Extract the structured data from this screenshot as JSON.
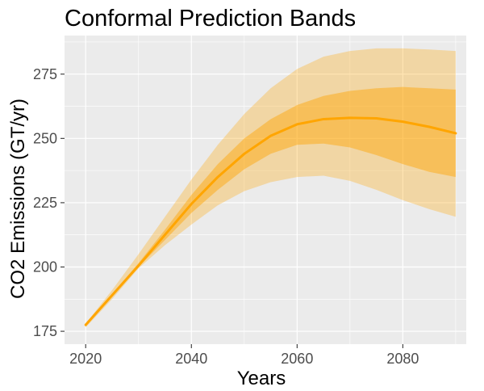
{
  "chart_data": {
    "type": "area",
    "title": "Conformal Prediction Bands",
    "xlabel": "Years",
    "ylabel": "CO2 Emissions (GT/yr)",
    "xlim": [
      2016,
      2092
    ],
    "ylim": [
      170,
      290
    ],
    "grid": true,
    "legend": "none",
    "x_ticks": [
      2020,
      2040,
      2060,
      2080
    ],
    "y_ticks": [
      175,
      200,
      225,
      250,
      275
    ],
    "x_tick_labels": [
      "2020",
      "2040",
      "2060",
      "2080"
    ],
    "y_tick_labels": [
      "175",
      "200",
      "225",
      "250",
      "275"
    ],
    "colors": {
      "panel_background": "#ebebeb",
      "grid_line": "#ffffff",
      "line": "#ffa500",
      "inner_band": "#ffa500",
      "outer_band": "#ffa500",
      "tick_mark": "#333333"
    },
    "x": [
      2020,
      2025,
      2030,
      2035,
      2040,
      2045,
      2050,
      2055,
      2060,
      2065,
      2070,
      2075,
      2080,
      2085,
      2090
    ],
    "series": [
      {
        "role": "outer_upper",
        "values": [
          178.0,
          191.0,
          205.0,
          219.5,
          234.0,
          247.5,
          259.5,
          269.5,
          277.0,
          281.8,
          284.0,
          285.0,
          285.0,
          284.6,
          284.0
        ]
      },
      {
        "role": "inner_upper",
        "values": [
          178.0,
          189.5,
          201.5,
          214.5,
          228.0,
          240.0,
          250.0,
          257.5,
          263.0,
          266.5,
          268.5,
          269.5,
          270.0,
          269.5,
          269.0
        ]
      },
      {
        "role": "line",
        "values": [
          177.5,
          189.0,
          200.5,
          212.5,
          224.5,
          235.0,
          244.0,
          251.0,
          255.5,
          257.5,
          258.0,
          257.8,
          256.5,
          254.5,
          252.0
        ]
      },
      {
        "role": "inner_lower",
        "values": [
          177.0,
          188.5,
          200.0,
          210.5,
          221.0,
          230.0,
          238.0,
          244.0,
          247.5,
          248.0,
          246.5,
          243.5,
          240.0,
          237.0,
          235.0
        ]
      },
      {
        "role": "outer_lower",
        "values": [
          176.5,
          187.5,
          199.5,
          208.5,
          216.5,
          224.0,
          229.5,
          233.0,
          235.0,
          235.5,
          233.5,
          230.0,
          226.0,
          222.5,
          219.5
        ]
      }
    ]
  }
}
